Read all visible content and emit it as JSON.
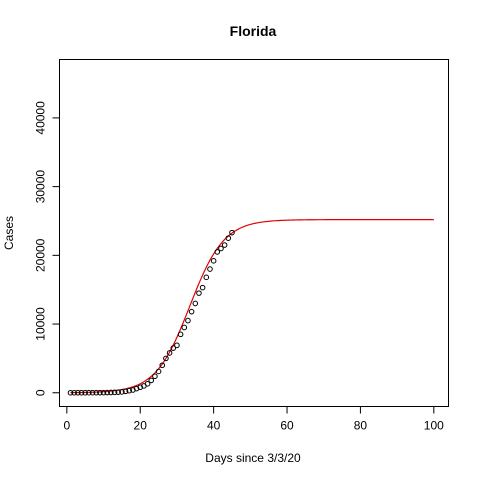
{
  "chart_data": {
    "type": "scatter",
    "title": "Florida",
    "xlabel": "Days since 3/3/20",
    "ylabel": "Cases",
    "xlim": [
      -2,
      104
    ],
    "ylim": [
      -2000,
      48500
    ],
    "xticks": [
      0,
      20,
      40,
      60,
      80,
      100
    ],
    "yticks": [
      0,
      10000,
      20000,
      30000,
      40000
    ],
    "grid": false,
    "legend": "none",
    "point_color": "#000000",
    "fit_color": "#e00000",
    "series": [
      {
        "values_x": [
          1,
          2,
          3,
          4,
          5,
          6,
          7,
          8,
          9,
          10,
          11,
          12,
          13,
          14,
          15,
          16,
          17,
          18,
          19,
          20,
          21,
          22,
          23,
          24,
          25,
          26,
          27,
          28,
          29,
          30,
          31,
          32,
          33,
          34,
          35,
          36,
          37,
          38,
          39,
          40,
          41,
          42,
          43,
          44,
          45
        ],
        "values_y": [
          2,
          2,
          3,
          4,
          6,
          8,
          10,
          12,
          15,
          20,
          30,
          40,
          60,
          90,
          120,
          200,
          300,
          400,
          600,
          800,
          1000,
          1300,
          1800,
          2400,
          3100,
          4000,
          5000,
          5800,
          6500,
          6900,
          8500,
          9500,
          10500,
          11800,
          13000,
          14500,
          15300,
          16800,
          18000,
          19200,
          20500,
          21000,
          21500,
          22500,
          23300
        ],
        "kind": "points"
      },
      {
        "kind": "logistic-fit",
        "K": 25200,
        "r": 0.215,
        "x0": 33.5,
        "x_range": [
          1,
          100
        ]
      }
    ]
  }
}
